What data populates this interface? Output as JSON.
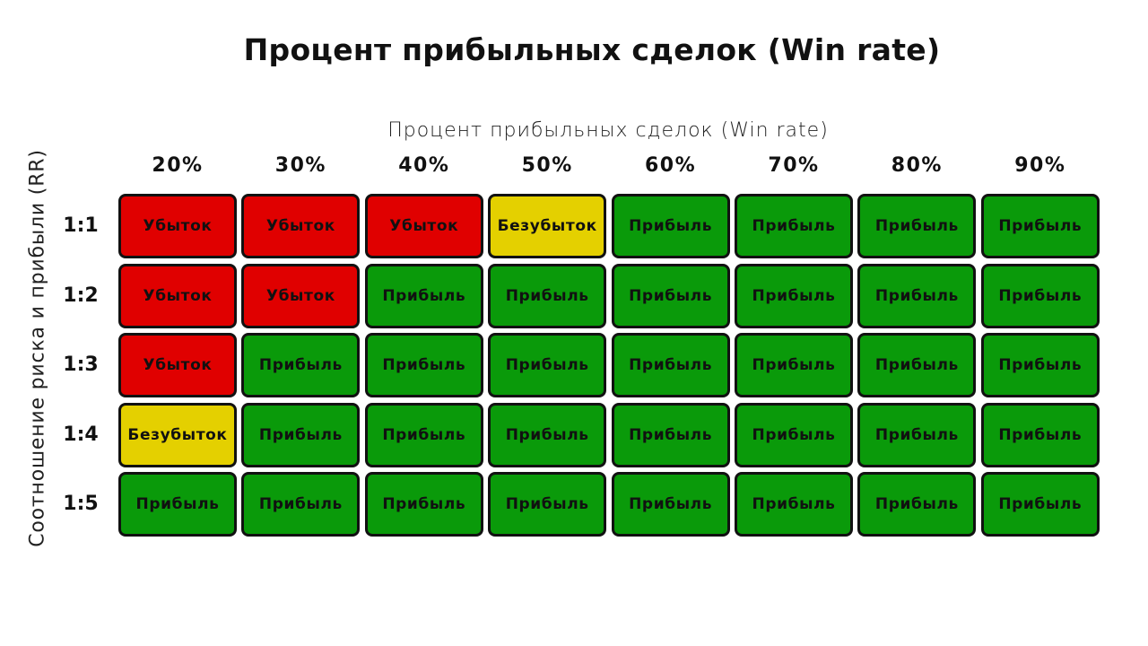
{
  "title": "Процент прибыльных сделок (Win rate)",
  "colors": {
    "loss": "#e00000",
    "breakeven": "#e4d000",
    "profit": "#0a9a0a",
    "border": "#111111"
  },
  "chart_data": {
    "type": "table",
    "title": "Процент прибыльных сделок (Win rate)",
    "xlabel": "Процент прибыльных сделок (Win rate)",
    "ylabel": "Соотношение риска и прибыли (RR)",
    "columns": [
      "20%",
      "30%",
      "40%",
      "50%",
      "60%",
      "70%",
      "80%",
      "90%"
    ],
    "rows": [
      "1:1",
      "1:2",
      "1:3",
      "1:4",
      "1:5"
    ],
    "legend": {
      "Убыток": "#e00000",
      "Безубыток": "#e4d000",
      "Прибыль": "#0a9a0a"
    },
    "values": [
      [
        "Убыток",
        "Убыток",
        "Убыток",
        "Безубыток",
        "Прибыль",
        "Прибыль",
        "Прибыль",
        "Прибыль"
      ],
      [
        "Убыток",
        "Убыток",
        "Прибыль",
        "Прибыль",
        "Прибыль",
        "Прибыль",
        "Прибыль",
        "Прибыль"
      ],
      [
        "Убыток",
        "Прибыль",
        "Прибыль",
        "Прибыль",
        "Прибыль",
        "Прибыль",
        "Прибыль",
        "Прибыль"
      ],
      [
        "Безубыток",
        "Прибыль",
        "Прибыль",
        "Прибыль",
        "Прибыль",
        "Прибыль",
        "Прибыль",
        "Прибыль"
      ],
      [
        "Прибыль",
        "Прибыль",
        "Прибыль",
        "Прибыль",
        "Прибыль",
        "Прибыль",
        "Прибыль",
        "Прибыль"
      ]
    ],
    "grid": false
  }
}
